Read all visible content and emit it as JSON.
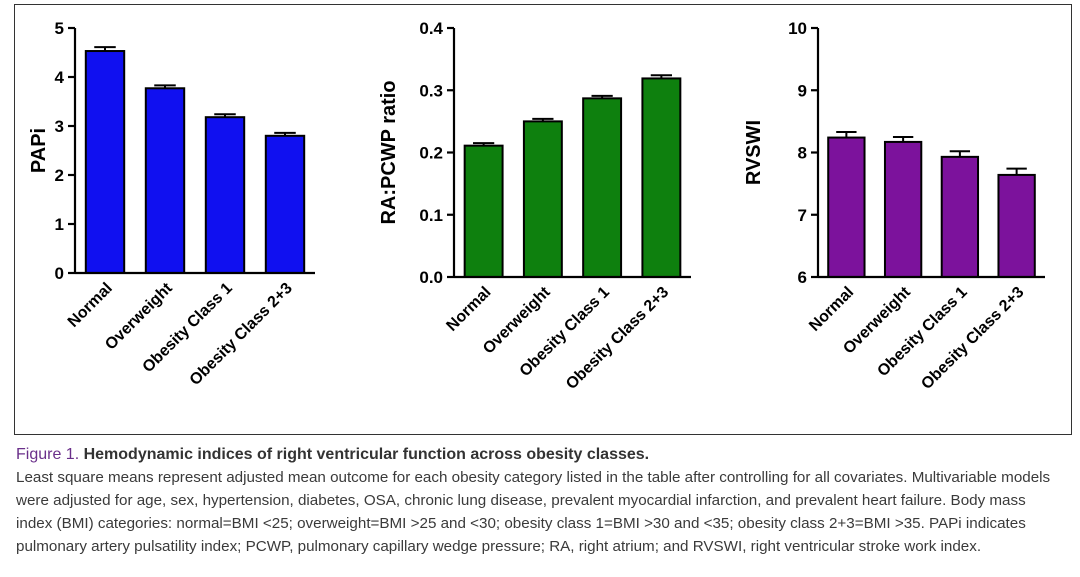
{
  "chart_data": [
    {
      "type": "bar",
      "categories": [
        "Normal",
        "Overweight",
        "Obesity Class 1",
        "Obesity Class 2+3"
      ],
      "values": [
        4.53,
        3.77,
        3.18,
        2.8
      ],
      "errors": [
        0.08,
        0.06,
        0.06,
        0.06
      ],
      "ylabel": "PAPi",
      "ylim": [
        0,
        5
      ],
      "yticks": [
        "0",
        "1",
        "2",
        "3",
        "4",
        "5"
      ],
      "color": "#1010f0"
    },
    {
      "type": "bar",
      "categories": [
        "Normal",
        "Overweight",
        "Obesity Class 1",
        "Obesity Class 2+3"
      ],
      "values": [
        0.211,
        0.25,
        0.287,
        0.319
      ],
      "errors": [
        0.004,
        0.004,
        0.004,
        0.005
      ],
      "ylabel": "RA:PCWP ratio",
      "ylim": [
        0,
        0.4
      ],
      "yticks": [
        "0.0",
        "0.1",
        "0.2",
        "0.3",
        "0.4"
      ],
      "color": "#0e800e"
    },
    {
      "type": "bar",
      "categories": [
        "Normal",
        "Overweight",
        "Obesity Class 1",
        "Obesity Class 2+3"
      ],
      "values": [
        8.24,
        8.17,
        7.93,
        7.64
      ],
      "errors": [
        0.09,
        0.08,
        0.09,
        0.1
      ],
      "ylabel": "RVSWI",
      "ylim": [
        6,
        10
      ],
      "yticks": [
        "6",
        "7",
        "8",
        "9",
        "10"
      ],
      "color": "#7c129c"
    }
  ],
  "caption": {
    "label": "Figure 1.",
    "heading": "Hemodynamic indices of right ventricular function across obesity classes.",
    "body": "Least square means represent adjusted mean outcome for each obesity category listed in the table after controlling for all covariates. Multivariable models were adjusted for age, sex, hypertension, diabetes, OSA, chronic lung disease, prevalent myocardial infarction, and prevalent heart failure. Body mass index (BMI) categories: normal=BMI <25; overweight=BMI >25 and <30; obesity class 1=BMI >30 and <35; obesity class 2+3=BMI >35. PAPi indicates pulmonary artery pulsatility index; PCWP, pulmonary capillary wedge pressure; RA, right atrium; and RVSWI, right ventricular stroke work index."
  }
}
